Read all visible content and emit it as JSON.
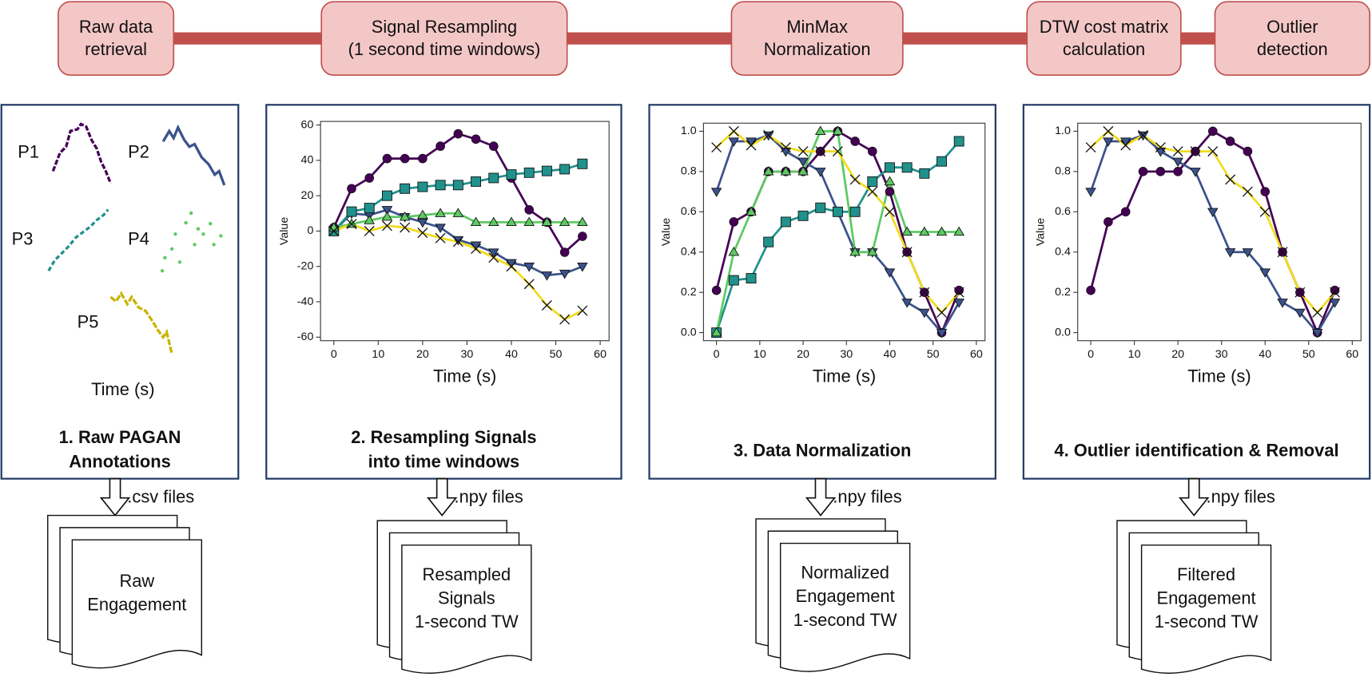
{
  "pipeline": [
    [
      "Raw data",
      "retrieval"
    ],
    [
      "Signal Resampling",
      "(1 second time windows)"
    ],
    [
      "MinMax",
      "Normalization"
    ],
    [
      "DTW cost matrix",
      "calculation"
    ],
    [
      "Outlier",
      "detection"
    ]
  ],
  "panels": [
    {
      "caption": [
        "1. Raw PAGAN",
        "Annotations"
      ],
      "participants": [
        "P1",
        "P2",
        "P3",
        "P4",
        "P5"
      ],
      "x_label": "Time (s)"
    },
    {
      "caption": [
        "2. Resampling Signals",
        "into time windows"
      ]
    },
    {
      "caption": [
        "3. Data Normalization"
      ]
    },
    {
      "caption": [
        "4. Outlier identification & Removal"
      ]
    }
  ],
  "files": [
    ".csv files",
    ".npy files",
    ".npy files",
    ".npy files"
  ],
  "documents": [
    [
      "Raw",
      "Engagement"
    ],
    [
      "Resampled",
      "Signals",
      "1-second TW"
    ],
    [
      "Normalized",
      "Engagement",
      "1-second TW"
    ],
    [
      "Filtered",
      "Engagement",
      "1-second TW"
    ]
  ],
  "chart_data": [
    {
      "type": "line",
      "x_label": "Time (s)",
      "y_label": "Value",
      "x": [
        0,
        4,
        8,
        12,
        16,
        20,
        24,
        28,
        32,
        36,
        40,
        44,
        48,
        52,
        56
      ],
      "xlim": [
        -3,
        62
      ],
      "xticks": [
        0,
        10,
        20,
        30,
        40,
        50,
        60
      ],
      "ylim": [
        -62,
        62
      ],
      "yticks": [
        -60,
        -40,
        -20,
        0,
        20,
        40,
        60
      ],
      "series": [
        {
          "color": "#440154",
          "marker": "circle",
          "values": [
            2,
            24,
            30,
            41,
            41,
            41,
            48,
            55,
            52,
            48,
            30,
            12,
            5,
            -12,
            -3
          ]
        },
        {
          "color": "#3b528b",
          "marker": "triangle-down",
          "values": [
            0,
            10,
            9,
            12,
            8,
            5,
            2,
            -5,
            -8,
            -12,
            -18,
            -20,
            -25,
            -24,
            -20
          ]
        },
        {
          "color": "#21918c",
          "marker": "square",
          "values": [
            0,
            11,
            13,
            20,
            24,
            25,
            26,
            26,
            28,
            30,
            32,
            33,
            34,
            35,
            38
          ]
        },
        {
          "color": "#5ec962",
          "marker": "triangle-up",
          "values": [
            2,
            4,
            6,
            8,
            8,
            9,
            10,
            10,
            5,
            5,
            5,
            5,
            5,
            5,
            5
          ]
        },
        {
          "color": "#f0dc1e",
          "marker": "x",
          "values": [
            0,
            4,
            0,
            3,
            2,
            -1,
            -4,
            -6,
            -10,
            -15,
            -20,
            -30,
            -42,
            -50,
            -45
          ]
        }
      ]
    },
    {
      "type": "line",
      "x_label": "Time (s)",
      "y_label": "Value",
      "x": [
        0,
        4,
        8,
        12,
        16,
        20,
        24,
        28,
        32,
        36,
        40,
        44,
        48,
        52,
        56
      ],
      "xlim": [
        -3,
        62
      ],
      "xticks": [
        0,
        10,
        20,
        30,
        40,
        50,
        60
      ],
      "ylim": [
        -0.04,
        1.04
      ],
      "yticks": [
        {
          "value": 0,
          "label": "0.0"
        },
        0.2,
        0.4,
        0.6,
        0.8,
        {
          "value": 1,
          "label": "1.0"
        }
      ],
      "series": [
        {
          "color": "#440154",
          "marker": "circle",
          "values": [
            0.21,
            0.55,
            0.6,
            0.8,
            0.8,
            0.8,
            0.9,
            1.0,
            0.95,
            0.9,
            0.7,
            0.4,
            0.2,
            0.0,
            0.21
          ]
        },
        {
          "color": "#3b528b",
          "marker": "triangle-down",
          "values": [
            0.7,
            0.95,
            0.95,
            0.98,
            0.9,
            0.85,
            0.8,
            0.6,
            0.4,
            0.4,
            0.3,
            0.15,
            0.1,
            0.0,
            0.15
          ]
        },
        {
          "color": "#21918c",
          "marker": "square",
          "values": [
            0.0,
            0.26,
            0.27,
            0.45,
            0.55,
            0.58,
            0.62,
            0.6,
            0.6,
            0.75,
            0.82,
            0.82,
            0.79,
            0.85,
            0.95
          ]
        },
        {
          "color": "#5ec962",
          "marker": "triangle-up",
          "values": [
            0.0,
            0.4,
            0.6,
            0.8,
            0.8,
            0.8,
            1.0,
            1.0,
            0.4,
            0.4,
            0.75,
            0.5,
            0.5,
            0.5,
            0.5
          ]
        },
        {
          "color": "#f0dc1e",
          "marker": "x",
          "values": [
            0.92,
            1.0,
            0.93,
            0.98,
            0.92,
            0.9,
            0.9,
            0.9,
            0.76,
            0.7,
            0.6,
            0.4,
            0.2,
            0.1,
            0.2
          ]
        }
      ]
    },
    {
      "type": "line",
      "x_label": "Time (s)",
      "y_label": "Value",
      "x": [
        0,
        4,
        8,
        12,
        16,
        20,
        24,
        28,
        32,
        36,
        40,
        44,
        48,
        52,
        56
      ],
      "xlim": [
        -3,
        62
      ],
      "xticks": [
        0,
        10,
        20,
        30,
        40,
        50,
        60
      ],
      "ylim": [
        -0.04,
        1.04
      ],
      "yticks": [
        {
          "value": 0,
          "label": "0.0"
        },
        0.2,
        0.4,
        0.6,
        0.8,
        {
          "value": 1,
          "label": "1.0"
        }
      ],
      "series": [
        {
          "color": "#440154",
          "marker": "circle",
          "values": [
            0.21,
            0.55,
            0.6,
            0.8,
            0.8,
            0.8,
            0.9,
            1.0,
            0.95,
            0.9,
            0.7,
            0.4,
            0.2,
            0.0,
            0.21
          ]
        },
        {
          "color": "#3b528b",
          "marker": "triangle-down",
          "values": [
            0.7,
            0.95,
            0.95,
            0.98,
            0.9,
            0.85,
            0.8,
            0.6,
            0.4,
            0.4,
            0.3,
            0.15,
            0.1,
            0.0,
            0.15
          ]
        },
        {
          "color": "#f0dc1e",
          "marker": "x",
          "values": [
            0.92,
            1.0,
            0.93,
            0.98,
            0.92,
            0.9,
            0.9,
            0.9,
            0.76,
            0.7,
            0.6,
            0.4,
            0.2,
            0.1,
            0.2
          ]
        }
      ]
    }
  ]
}
